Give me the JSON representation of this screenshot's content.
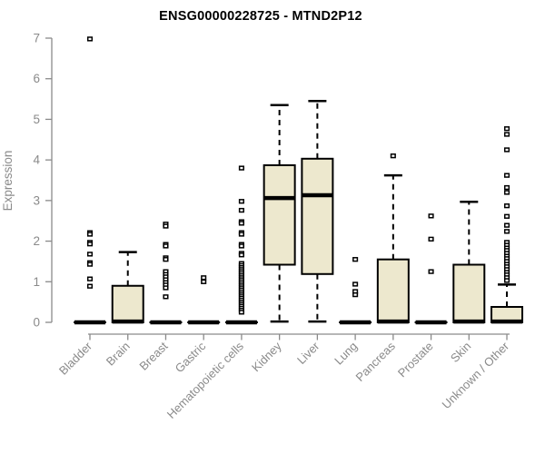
{
  "chart_data": {
    "type": "boxplot",
    "title": "ENSG00000228725 - MTND2P12",
    "xlabel": "",
    "ylabel": "Expression",
    "ylim": [
      0,
      7
    ],
    "yticks": [
      0,
      1,
      2,
      3,
      4,
      5,
      6,
      7
    ],
    "grid": false,
    "legend": false,
    "box_fill": "#ede8ce",
    "box_stroke": "#000000",
    "axis_color": "#8a8a8a",
    "label_color": "#8a8a8a",
    "categories": [
      "Bladder",
      "Brain",
      "Breast",
      "Gastric",
      "Hematopoietic cells",
      "Kidney",
      "Liver",
      "Lung",
      "Pancreas",
      "Prostate",
      "Skin",
      "Unknown / Other"
    ],
    "series": [
      {
        "category": "Bladder",
        "q1": 0,
        "median": 0,
        "q3": 0,
        "whisker_low": 0,
        "whisker_high": 0,
        "outliers": [
          6.98,
          2.21,
          2.17,
          1.97,
          1.93,
          1.68,
          1.47,
          1.43,
          1.07,
          0.89
        ]
      },
      {
        "category": "Brain",
        "q1": 0,
        "median": 0.02,
        "q3": 0.9,
        "whisker_low": 0,
        "whisker_high": 1.73,
        "outliers": []
      },
      {
        "category": "Breast",
        "q1": 0,
        "median": 0,
        "q3": 0,
        "whisker_low": 0,
        "whisker_high": 0,
        "outliers": [
          2.42,
          2.37,
          1.92,
          1.88,
          1.59,
          1.55,
          1.25,
          1.18,
          1.12,
          1.05,
          0.98,
          0.92,
          0.85,
          0.63
        ]
      },
      {
        "category": "Gastric",
        "q1": 0,
        "median": 0,
        "q3": 0,
        "whisker_low": 0,
        "whisker_high": 0,
        "outliers": [
          1.1,
          1.0
        ]
      },
      {
        "category": "Hematopoietic cells",
        "q1": 0,
        "median": 0,
        "q3": 0,
        "whisker_low": 0,
        "whisker_high": 0,
        "outliers": [
          3.8,
          2.98,
          2.76,
          2.48,
          2.44,
          2.21,
          2.17,
          1.92,
          1.88,
          1.7,
          1.66,
          1.45,
          1.4,
          1.35,
          1.3,
          1.25,
          1.2,
          1.15,
          1.1,
          1.05,
          1.0,
          0.95,
          0.9,
          0.85,
          0.8,
          0.75,
          0.7,
          0.65,
          0.6,
          0.55,
          0.5,
          0.45,
          0.4,
          0.35,
          0.3,
          0.25
        ]
      },
      {
        "category": "Kidney",
        "q1": 1.42,
        "median": 3.06,
        "q3": 3.87,
        "whisker_low": 0.02,
        "whisker_high": 5.35,
        "outliers": []
      },
      {
        "category": "Liver",
        "q1": 1.19,
        "median": 3.13,
        "q3": 4.03,
        "whisker_low": 0.02,
        "whisker_high": 5.45,
        "outliers": []
      },
      {
        "category": "Lung",
        "q1": 0,
        "median": 0,
        "q3": 0,
        "whisker_low": 0,
        "whisker_high": 0,
        "outliers": [
          1.55,
          0.94,
          0.76,
          0.68
        ]
      },
      {
        "category": "Pancreas",
        "q1": 0,
        "median": 0.02,
        "q3": 1.55,
        "whisker_low": 0,
        "whisker_high": 3.62,
        "outliers": [
          4.1
        ]
      },
      {
        "category": "Prostate",
        "q1": 0,
        "median": 0,
        "q3": 0,
        "whisker_low": 0,
        "whisker_high": 0,
        "outliers": [
          2.62,
          2.05,
          1.25
        ]
      },
      {
        "category": "Skin",
        "q1": 0,
        "median": 0.02,
        "q3": 1.42,
        "whisker_low": 0,
        "whisker_high": 2.97,
        "outliers": []
      },
      {
        "category": "Unknown / Other",
        "q1": 0,
        "median": 0.02,
        "q3": 0.38,
        "whisker_low": 0,
        "whisker_high": 0.93,
        "outliers": [
          4.77,
          4.63,
          4.25,
          3.62,
          3.32,
          3.2,
          2.87,
          2.61,
          2.39,
          2.24,
          1.97,
          1.9,
          1.83,
          1.77,
          1.7,
          1.63,
          1.57,
          1.5,
          1.43,
          1.37,
          1.3,
          1.23,
          1.17,
          1.1,
          1.03
        ]
      }
    ]
  }
}
